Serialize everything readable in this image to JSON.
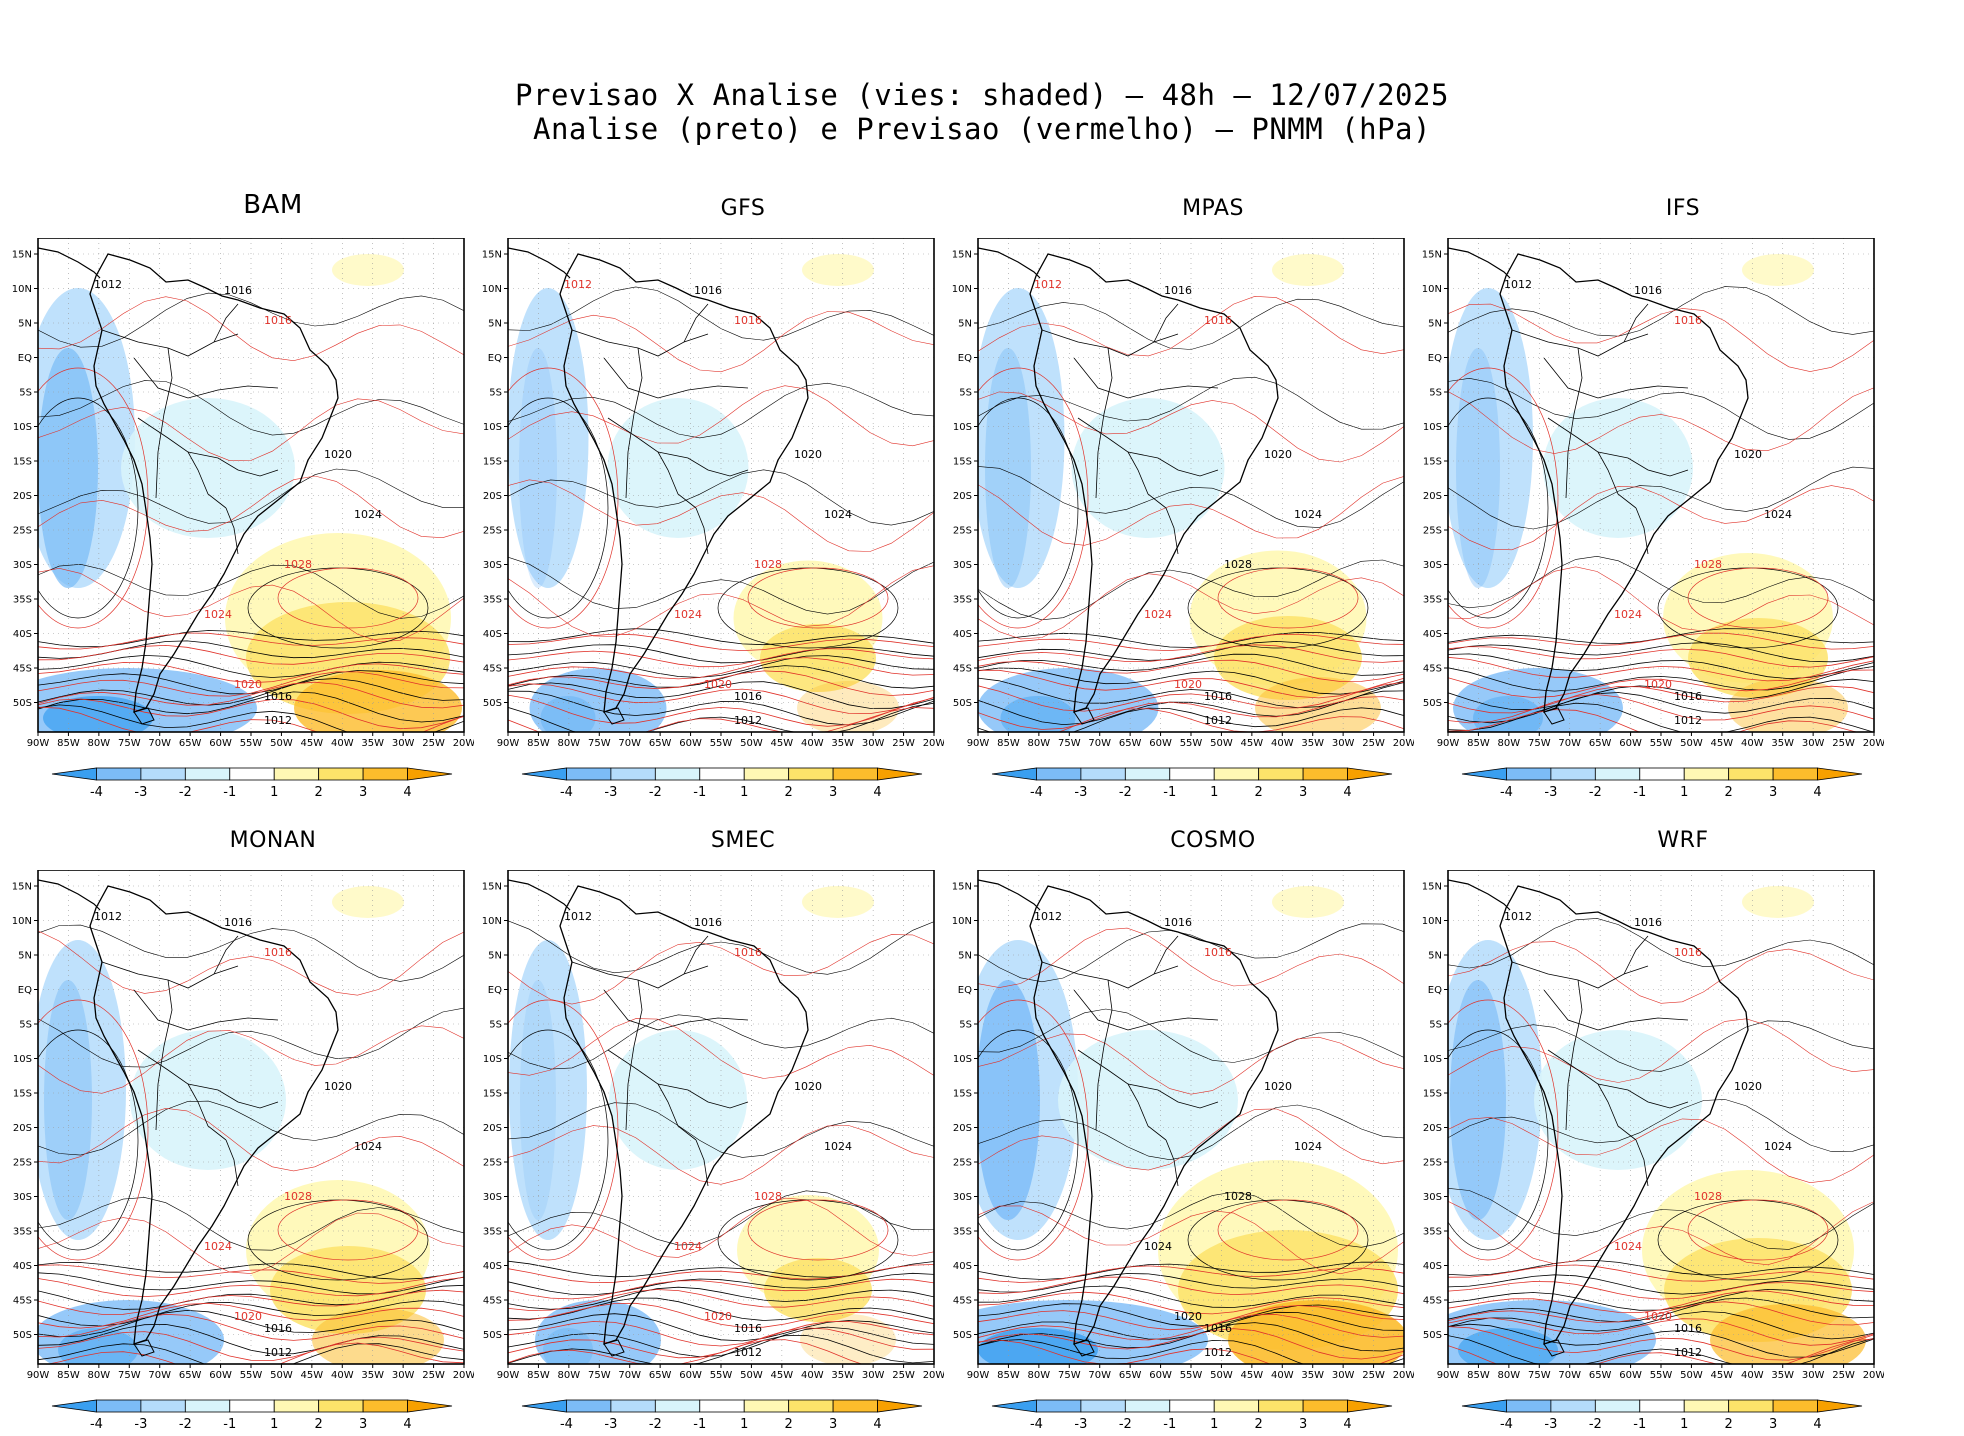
{
  "title": {
    "line1": "Previsao X Analise (vies: shaded) – 48h – 12/07/2025",
    "line2": "Analise (preto) e Previsao (vermelho) – PNMM (hPa)"
  },
  "lat_labels": [
    "15N",
    "10N",
    "5N",
    "EQ",
    "5S",
    "10S",
    "15S",
    "20S",
    "25S",
    "30S",
    "35S",
    "40S",
    "45S",
    "50S"
  ],
  "lon_labels": [
    "90W",
    "85W",
    "80W",
    "75W",
    "70W",
    "65W",
    "60W",
    "55W",
    "50W",
    "45W",
    "40W",
    "35W",
    "30W",
    "25W",
    "20W"
  ],
  "colorbar": {
    "labels": [
      "-4",
      "-3",
      "-2",
      "-1",
      "1",
      "2",
      "3",
      "4"
    ],
    "colors": [
      "#3a9ff0",
      "#7cbcf7",
      "#b4dcfb",
      "#d8f4fb",
      "#ffffff",
      "#fff8b4",
      "#fde36a",
      "#fcbd2c",
      "#f7a000"
    ]
  },
  "line_colors": {
    "analysis": "#000000",
    "forecast": "#e0322a"
  },
  "panels": [
    {
      "name": "BAM",
      "bias_level": 0.9,
      "labels": [
        {
          "t": "1012",
          "c": "k"
        },
        {
          "t": "1016",
          "c": "k"
        },
        {
          "t": "1016",
          "c": "r"
        },
        {
          "t": "1020",
          "c": "k"
        },
        {
          "t": "1024",
          "c": "k"
        },
        {
          "t": "1028",
          "c": "r"
        },
        {
          "t": "1024",
          "c": "r"
        },
        {
          "t": "1020",
          "c": "r"
        },
        {
          "t": "1016",
          "c": "k"
        },
        {
          "t": "1012",
          "c": "k"
        }
      ]
    },
    {
      "name": "GFS",
      "bias_level": 0.35,
      "labels": [
        {
          "t": "1012",
          "c": "r"
        },
        {
          "t": "1016",
          "c": "k"
        },
        {
          "t": "1016",
          "c": "r"
        },
        {
          "t": "1020",
          "c": "k"
        },
        {
          "t": "1024",
          "c": "k"
        },
        {
          "t": "1028",
          "c": "r"
        },
        {
          "t": "1024",
          "c": "r"
        },
        {
          "t": "1020",
          "c": "r"
        },
        {
          "t": "1016",
          "c": "k"
        },
        {
          "t": "1012",
          "c": "k"
        }
      ]
    },
    {
      "name": "MPAS",
      "bias_level": 0.55,
      "labels": [
        {
          "t": "1012",
          "c": "r"
        },
        {
          "t": "1016",
          "c": "k"
        },
        {
          "t": "1016",
          "c": "r"
        },
        {
          "t": "1020",
          "c": "k"
        },
        {
          "t": "1024",
          "c": "k"
        },
        {
          "t": "1028",
          "c": "k"
        },
        {
          "t": "1024",
          "c": "r"
        },
        {
          "t": "1020",
          "c": "r"
        },
        {
          "t": "1016",
          "c": "k"
        },
        {
          "t": "1012",
          "c": "k"
        }
      ]
    },
    {
      "name": "IFS",
      "bias_level": 0.5,
      "labels": [
        {
          "t": "1012",
          "c": "k"
        },
        {
          "t": "1016",
          "c": "k"
        },
        {
          "t": "1016",
          "c": "r"
        },
        {
          "t": "1020",
          "c": "k"
        },
        {
          "t": "1024",
          "c": "k"
        },
        {
          "t": "1028",
          "c": "r"
        },
        {
          "t": "1024",
          "c": "r"
        },
        {
          "t": "1020",
          "c": "r"
        },
        {
          "t": "1016",
          "c": "k"
        },
        {
          "t": "1012",
          "c": "k"
        }
      ]
    },
    {
      "name": "MONAN",
      "bias_level": 0.6,
      "labels": [
        {
          "t": "1012",
          "c": "k"
        },
        {
          "t": "1016",
          "c": "k"
        },
        {
          "t": "1016",
          "c": "r"
        },
        {
          "t": "1020",
          "c": "k"
        },
        {
          "t": "1024",
          "c": "k"
        },
        {
          "t": "1028",
          "c": "r"
        },
        {
          "t": "1024",
          "c": "r"
        },
        {
          "t": "1020",
          "c": "r"
        },
        {
          "t": "1016",
          "c": "k"
        },
        {
          "t": "1012",
          "c": "k"
        }
      ]
    },
    {
      "name": "SMEC",
      "bias_level": 0.3,
      "labels": [
        {
          "t": "1012",
          "c": "k"
        },
        {
          "t": "1016",
          "c": "k"
        },
        {
          "t": "1016",
          "c": "r"
        },
        {
          "t": "1020",
          "c": "k"
        },
        {
          "t": "1024",
          "c": "k"
        },
        {
          "t": "1028",
          "c": "r"
        },
        {
          "t": "1024",
          "c": "r"
        },
        {
          "t": "1020",
          "c": "r"
        },
        {
          "t": "1016",
          "c": "k"
        },
        {
          "t": "1012",
          "c": "k"
        }
      ]
    },
    {
      "name": "COSMO",
      "bias_level": 1.0,
      "labels": [
        {
          "t": "1012",
          "c": "k"
        },
        {
          "t": "1016",
          "c": "k"
        },
        {
          "t": "1016",
          "c": "r"
        },
        {
          "t": "1020",
          "c": "k"
        },
        {
          "t": "1024",
          "c": "k"
        },
        {
          "t": "1028",
          "c": "k"
        },
        {
          "t": "1024",
          "c": "k"
        },
        {
          "t": "1020",
          "c": "k"
        },
        {
          "t": "1016",
          "c": "k"
        },
        {
          "t": "1012",
          "c": "k"
        }
      ]
    },
    {
      "name": "WRF",
      "bias_level": 0.8,
      "labels": [
        {
          "t": "1012",
          "c": "k"
        },
        {
          "t": "1016",
          "c": "k"
        },
        {
          "t": "1016",
          "c": "r"
        },
        {
          "t": "1020",
          "c": "k"
        },
        {
          "t": "1024",
          "c": "k"
        },
        {
          "t": "1028",
          "c": "r"
        },
        {
          "t": "1024",
          "c": "r"
        },
        {
          "t": "1020",
          "c": "r"
        },
        {
          "t": "1016",
          "c": "k"
        },
        {
          "t": "1012",
          "c": "k"
        }
      ]
    }
  ]
}
